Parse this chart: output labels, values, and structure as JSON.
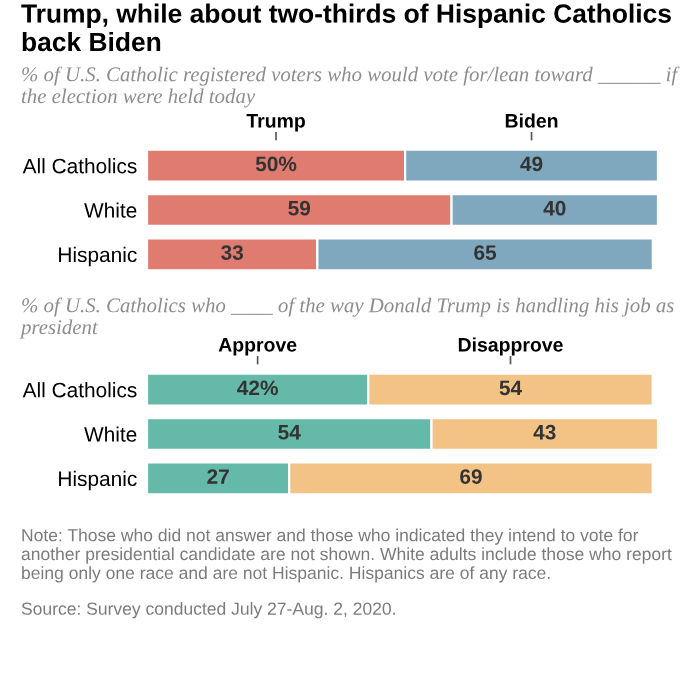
{
  "chart_data": [
    {
      "type": "bar",
      "orientation": "horizontal",
      "stacked": true,
      "legend": "top",
      "title": "Trump, while about two-thirds of Hispanic Catholics back Biden",
      "subtitle": "% of U.S. Catholic registered voters who would vote for/lean toward ______ if the election were held today",
      "categories": [
        "All Catholics",
        "White",
        "Hispanic"
      ],
      "series": [
        {
          "name": "Trump",
          "color": "#e07b70",
          "values": [
            50,
            59,
            33
          ],
          "value_labels": [
            "50%",
            "59",
            "33"
          ]
        },
        {
          "name": "Biden",
          "color": "#7fa7be",
          "values": [
            49,
            40,
            65
          ],
          "value_labels": [
            "49",
            "40",
            "65"
          ]
        }
      ]
    },
    {
      "type": "bar",
      "orientation": "horizontal",
      "stacked": true,
      "legend": "top",
      "subtitle": "% of U.S. Catholics who ____ of the way Donald Trump is handling his job as president",
      "categories": [
        "All Catholics",
        "White",
        "Hispanic"
      ],
      "series": [
        {
          "name": "Approve",
          "color": "#64b9a8",
          "values": [
            42,
            54,
            27
          ],
          "value_labels": [
            "42%",
            "54",
            "27"
          ]
        },
        {
          "name": "Disapprove",
          "color": "#f2c385",
          "values": [
            54,
            43,
            69
          ],
          "value_labels": [
            "54",
            "43",
            "69"
          ]
        }
      ],
      "annotations": [
        "Note: Those who did not answer and those who indicated they intend to vote for another presidential candidate are not shown. White adults include those who report being only one race and are not Hispanic. Hispanics are of any race.",
        "Source: Survey conducted July 27-Aug. 2, 2020."
      ]
    }
  ]
}
